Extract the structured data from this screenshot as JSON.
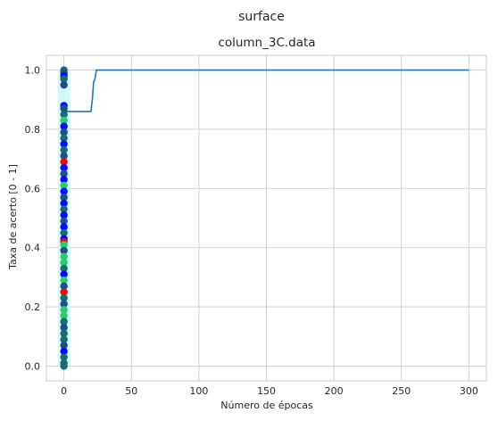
{
  "chart_data": {
    "type": "line",
    "suptitle": "surface",
    "title": "column_3C.data",
    "xlabel": "Número de épocas",
    "ylabel": "Taxa de acerto [0 - 1]",
    "xlim": [
      -13,
      313
    ],
    "ylim": [
      -0.05,
      1.05
    ],
    "grid": true,
    "xticks": [
      0,
      50,
      100,
      150,
      200,
      250,
      300
    ],
    "yticks": [
      0.0,
      0.2,
      0.4,
      0.6,
      0.8,
      1.0
    ],
    "xtick_labels": [
      "0",
      "50",
      "100",
      "150",
      "200",
      "250",
      "300"
    ],
    "ytick_labels": [
      "0.0",
      "0.2",
      "0.4",
      "0.6",
      "0.8",
      "1.0"
    ],
    "line": {
      "color": "#1f77b4",
      "x": [
        1,
        2,
        5,
        10,
        15,
        20,
        21,
        22,
        23,
        24,
        25,
        30,
        50,
        100,
        150,
        200,
        250,
        300
      ],
      "y": [
        0.86,
        0.86,
        0.86,
        0.86,
        0.86,
        0.86,
        0.9,
        0.96,
        0.97,
        1.0,
        1.0,
        1.0,
        1.0,
        1.0,
        1.0,
        1.0,
        1.0,
        1.0
      ]
    },
    "band": {
      "color": "#c8f7f7",
      "x": 0,
      "y_low": 0.0,
      "y_high": 1.0
    },
    "scatter": {
      "x": 0,
      "colors": {
        "navy": "#1f4e8c",
        "blue": "#0a0aff",
        "red": "#ff0000",
        "green": "#2ecc71",
        "teal": "#1a6b6b"
      },
      "points": [
        {
          "y": 1.0,
          "c": "teal"
        },
        {
          "y": 0.99,
          "c": "navy"
        },
        {
          "y": 0.98,
          "c": "blue"
        },
        {
          "y": 0.97,
          "c": "teal"
        },
        {
          "y": 0.95,
          "c": "navy"
        },
        {
          "y": 0.88,
          "c": "blue"
        },
        {
          "y": 0.87,
          "c": "navy"
        },
        {
          "y": 0.85,
          "c": "teal"
        },
        {
          "y": 0.83,
          "c": "green"
        },
        {
          "y": 0.81,
          "c": "blue"
        },
        {
          "y": 0.79,
          "c": "navy"
        },
        {
          "y": 0.77,
          "c": "teal"
        },
        {
          "y": 0.75,
          "c": "blue"
        },
        {
          "y": 0.73,
          "c": "teal"
        },
        {
          "y": 0.71,
          "c": "navy"
        },
        {
          "y": 0.69,
          "c": "red"
        },
        {
          "y": 0.67,
          "c": "blue"
        },
        {
          "y": 0.65,
          "c": "navy"
        },
        {
          "y": 0.63,
          "c": "blue"
        },
        {
          "y": 0.61,
          "c": "green"
        },
        {
          "y": 0.59,
          "c": "blue"
        },
        {
          "y": 0.57,
          "c": "navy"
        },
        {
          "y": 0.55,
          "c": "blue"
        },
        {
          "y": 0.53,
          "c": "teal"
        },
        {
          "y": 0.51,
          "c": "blue"
        },
        {
          "y": 0.49,
          "c": "navy"
        },
        {
          "y": 0.47,
          "c": "blue"
        },
        {
          "y": 0.45,
          "c": "teal"
        },
        {
          "y": 0.43,
          "c": "blue"
        },
        {
          "y": 0.42,
          "c": "red"
        },
        {
          "y": 0.41,
          "c": "green"
        },
        {
          "y": 0.39,
          "c": "navy"
        },
        {
          "y": 0.37,
          "c": "green"
        },
        {
          "y": 0.35,
          "c": "green"
        },
        {
          "y": 0.33,
          "c": "teal"
        },
        {
          "y": 0.31,
          "c": "blue"
        },
        {
          "y": 0.29,
          "c": "green"
        },
        {
          "y": 0.27,
          "c": "navy"
        },
        {
          "y": 0.25,
          "c": "red"
        },
        {
          "y": 0.23,
          "c": "teal"
        },
        {
          "y": 0.21,
          "c": "navy"
        },
        {
          "y": 0.19,
          "c": "green"
        },
        {
          "y": 0.17,
          "c": "green"
        },
        {
          "y": 0.15,
          "c": "teal"
        },
        {
          "y": 0.13,
          "c": "navy"
        },
        {
          "y": 0.11,
          "c": "teal"
        },
        {
          "y": 0.09,
          "c": "teal"
        },
        {
          "y": 0.07,
          "c": "navy"
        },
        {
          "y": 0.05,
          "c": "blue"
        },
        {
          "y": 0.03,
          "c": "teal"
        },
        {
          "y": 0.01,
          "c": "teal"
        },
        {
          "y": 0.0,
          "c": "teal"
        }
      ]
    }
  }
}
